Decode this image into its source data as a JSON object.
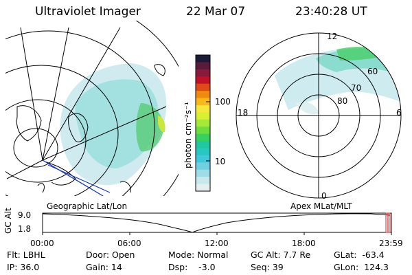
{
  "header": {
    "instrument": "Ultraviolet Imager",
    "date": "22 Mar 07",
    "time": "23:40:28 UT"
  },
  "colorbar": {
    "label": "photon cm⁻²s⁻¹",
    "ticks": [
      "100",
      "10"
    ],
    "colors": [
      "#1a1a3a",
      "#5a1a3a",
      "#8a1a3a",
      "#c0102a",
      "#e04a18",
      "#f08a10",
      "#f8b818",
      "#f4e83a",
      "#d8f030",
      "#a8e838",
      "#70dc3c",
      "#38d060",
      "#20c8a0",
      "#28c8c0",
      "#40c8d8",
      "#70d0e0",
      "#a0dce8",
      "#c8e8ec",
      "#e4eeef"
    ]
  },
  "left_map": {
    "title": "Geographic Lat/Lon"
  },
  "right_map": {
    "title": "Apex MLat/MLT",
    "mlt_labels": {
      "top": "12",
      "left": "18",
      "right": "6",
      "bottom": "0"
    },
    "lat_labels": [
      "60",
      "70",
      "80"
    ]
  },
  "timeline": {
    "ylabel": "GC Alt",
    "yticks": [
      "9.0",
      "1.8"
    ],
    "xticks": [
      "00:00",
      "06:00",
      "12:00",
      "18:00",
      "23:59"
    ]
  },
  "info": {
    "filter": "Flt: LBHL",
    "ip": "IP: 36.0",
    "door": "Door: Open",
    "gain": "Gain: 14",
    "mode": "Mode: Normal",
    "dsp": "Dsp:    -3.0",
    "gc_alt": "GC Alt: 7.7 Re",
    "seq": "Seq: 39",
    "glat": "GLat:  -63.4",
    "glon": "GLon:  124.3"
  }
}
